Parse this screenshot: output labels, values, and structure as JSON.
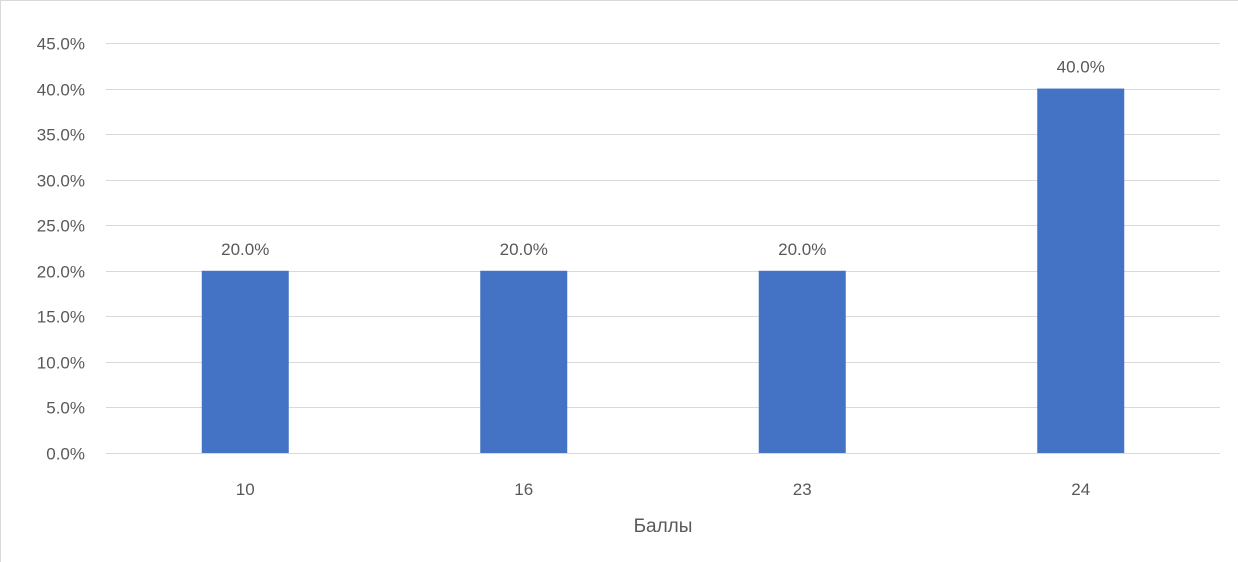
{
  "chart_data": {
    "type": "bar",
    "categories": [
      "10",
      "16",
      "23",
      "24"
    ],
    "values": [
      20.0,
      20.0,
      20.0,
      40.0
    ],
    "data_labels": [
      "20.0%",
      "20.0%",
      "20.0%",
      "40.0%"
    ],
    "title": "",
    "xlabel": "Баллы",
    "ylabel": "",
    "ylim": [
      0,
      45
    ],
    "ytick_step": 5,
    "ytick_labels": [
      "0.0%",
      "5.0%",
      "10.0%",
      "15.0%",
      "20.0%",
      "25.0%",
      "30.0%",
      "35.0%",
      "40.0%",
      "45.0%"
    ],
    "grid": true,
    "legend": "none",
    "bar_color": "#4472c4",
    "grid_color": "#d9d9d9"
  }
}
